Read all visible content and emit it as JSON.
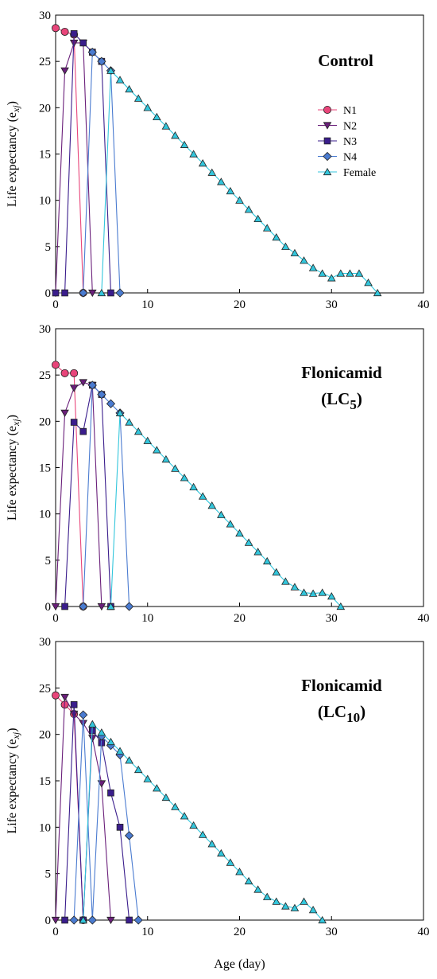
{
  "chart_data": [
    {
      "type": "line",
      "title": "Control",
      "title_sub": "",
      "title_line2": "",
      "xlabel": "Age (day)",
      "ylabel": "Life expectancy (e",
      "ylabel_sub": "xj",
      "ylabel_suffix": ")",
      "xlim": [
        0,
        40
      ],
      "ylim": [
        0,
        30
      ],
      "xticks": [
        "0",
        "10",
        "20",
        "30",
        "40"
      ],
      "yticks": [
        "0",
        "5",
        "10",
        "15",
        "20",
        "25",
        "30"
      ],
      "legend": {
        "placement": "right",
        "entries": [
          "N1",
          "N2",
          "N3",
          "N4",
          "Female"
        ]
      },
      "series": [
        {
          "name": "N1",
          "color": "#e8457a",
          "marker": "circle",
          "x": [
            0,
            1,
            2,
            3
          ],
          "y": [
            28.6,
            28.2,
            27.9,
            0
          ]
        },
        {
          "name": "N2",
          "color": "#6a1f7a",
          "marker": "triangle-down",
          "x": [
            0,
            1,
            2,
            3,
            4
          ],
          "y": [
            0,
            24,
            27,
            27,
            0
          ]
        },
        {
          "name": "N3",
          "color": "#3a1d8c",
          "marker": "square",
          "x": [
            0,
            1,
            2,
            3,
            4,
            5,
            6
          ],
          "y": [
            0,
            0,
            28,
            27,
            26,
            25,
            0
          ]
        },
        {
          "name": "N4",
          "color": "#4a7bd0",
          "marker": "diamond",
          "x": [
            3,
            4,
            5,
            6,
            7
          ],
          "y": [
            0,
            26,
            25,
            24,
            0
          ]
        },
        {
          "name": "Female",
          "color": "#33c6dc",
          "marker": "triangle-up",
          "x": [
            5,
            6,
            7,
            8,
            9,
            10,
            11,
            12,
            13,
            14,
            15,
            16,
            17,
            18,
            19,
            20,
            21,
            22,
            23,
            24,
            25,
            26,
            27,
            28,
            29,
            30,
            31,
            32,
            33,
            34,
            35
          ],
          "y": [
            0,
            24,
            23,
            22,
            21,
            20,
            19,
            18,
            17,
            16,
            15,
            14,
            13,
            12,
            11,
            10,
            9,
            8,
            7,
            6,
            5,
            4.3,
            3.5,
            2.7,
            2.1,
            1.6,
            2.1,
            2.1,
            2.1,
            1.1,
            0
          ]
        }
      ]
    },
    {
      "type": "line",
      "title": "Flonicamid",
      "title_sub": "",
      "title_line2": "(LC",
      "title_line2_sub": "5",
      "title_line2_suffix": ")",
      "xlabel": "Age (day)",
      "ylabel": "Life expectancy (e",
      "ylabel_sub": "xj",
      "ylabel_suffix": ")",
      "xlim": [
        0,
        40
      ],
      "ylim": [
        0,
        30
      ],
      "xticks": [
        "0",
        "10",
        "20",
        "30",
        "40"
      ],
      "yticks": [
        "0",
        "5",
        "10",
        "15",
        "20",
        "25",
        "30"
      ],
      "series": [
        {
          "name": "N1",
          "color": "#e8457a",
          "marker": "circle",
          "x": [
            0,
            1,
            2,
            3
          ],
          "y": [
            26.1,
            25.2,
            25.2,
            0
          ]
        },
        {
          "name": "N2",
          "color": "#6a1f7a",
          "marker": "triangle-down",
          "x": [
            0,
            1,
            2,
            3,
            4,
            5
          ],
          "y": [
            0,
            20.9,
            23.6,
            24.2,
            23.9,
            0
          ]
        },
        {
          "name": "N3",
          "color": "#3a1d8c",
          "marker": "square",
          "x": [
            1,
            2,
            3,
            4,
            5,
            6
          ],
          "y": [
            0,
            19.9,
            18.9,
            23.9,
            22.9,
            0
          ]
        },
        {
          "name": "N4",
          "color": "#4a7bd0",
          "marker": "diamond",
          "x": [
            3,
            4,
            5,
            6,
            7,
            8
          ],
          "y": [
            0,
            23.9,
            22.9,
            21.9,
            20.9,
            0
          ]
        },
        {
          "name": "Female",
          "color": "#33c6dc",
          "marker": "triangle-up",
          "x": [
            6,
            7,
            8,
            9,
            10,
            11,
            12,
            13,
            14,
            15,
            16,
            17,
            18,
            19,
            20,
            21,
            22,
            23,
            24,
            25,
            26,
            27,
            28,
            29,
            30,
            31
          ],
          "y": [
            0,
            20.9,
            19.9,
            18.9,
            17.9,
            16.9,
            15.9,
            14.9,
            13.9,
            12.9,
            11.9,
            10.9,
            9.9,
            8.9,
            7.9,
            6.9,
            5.9,
            4.9,
            3.7,
            2.7,
            2.1,
            1.5,
            1.4,
            1.5,
            1.1,
            0
          ]
        }
      ]
    },
    {
      "type": "line",
      "title": "Flonicamid",
      "title_sub": "",
      "title_line2": "(LC",
      "title_line2_sub": "10",
      "title_line2_suffix": ")",
      "xlabel": "Age (day)",
      "ylabel": "Life expectancy (e",
      "ylabel_sub": "xj",
      "ylabel_suffix": ")",
      "xlim": [
        0,
        40
      ],
      "ylim": [
        0,
        30
      ],
      "xticks": [
        "0",
        "10",
        "20",
        "30",
        "40"
      ],
      "yticks": [
        "0",
        "5",
        "10",
        "15",
        "20",
        "25",
        "30"
      ],
      "series": [
        {
          "name": "N1",
          "color": "#e8457a",
          "marker": "circle",
          "x": [
            0,
            1,
            2,
            3
          ],
          "y": [
            24.2,
            23.2,
            22.2,
            0
          ]
        },
        {
          "name": "N2",
          "color": "#6a1f7a",
          "marker": "triangle-down",
          "x": [
            0,
            1,
            2,
            3,
            4,
            5,
            6
          ],
          "y": [
            0,
            24,
            22.2,
            21.2,
            19.6,
            14.7,
            0
          ]
        },
        {
          "name": "N3",
          "color": "#3a1d8c",
          "marker": "square",
          "x": [
            1,
            2,
            3,
            4,
            5,
            6,
            7,
            8
          ],
          "y": [
            0,
            23.2,
            0,
            20.4,
            19.1,
            13.7,
            10,
            0
          ]
        },
        {
          "name": "N4",
          "color": "#4a7bd0",
          "marker": "diamond",
          "x": [
            2,
            3,
            4,
            5,
            6,
            7,
            8,
            9
          ],
          "y": [
            0,
            22.1,
            0,
            19.8,
            18.8,
            17.8,
            9.1,
            0
          ]
        },
        {
          "name": "Female",
          "color": "#33c6dc",
          "marker": "triangle-up",
          "x": [
            3,
            4,
            5,
            6,
            7,
            8,
            9,
            10,
            11,
            12,
            13,
            14,
            15,
            16,
            17,
            18,
            19,
            20,
            21,
            22,
            23,
            24,
            25,
            26,
            27,
            28,
            29
          ],
          "y": [
            0,
            21.1,
            20.2,
            19.2,
            18.2,
            17.2,
            16.2,
            15.2,
            14.2,
            13.2,
            12.2,
            11.2,
            10.2,
            9.2,
            8.2,
            7.2,
            6.2,
            5.2,
            4.2,
            3.3,
            2.5,
            2,
            1.5,
            1.3,
            2,
            1.1,
            0
          ]
        }
      ]
    }
  ]
}
